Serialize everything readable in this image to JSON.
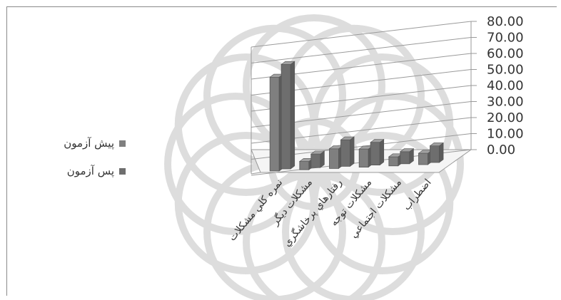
{
  "chart_data": {
    "type": "bar",
    "three_d": true,
    "categories": [
      "نمره كلي مشكلات",
      "مشكلات ديگر",
      "رفتارهاي پرخاشگري",
      "مشكلات توجه",
      "مشكلات اجتماعي",
      "اضطراب"
    ],
    "series": [
      {
        "name": "پيش آزمون",
        "values": [
          62.0,
          5.5,
          13.0,
          12.0,
          6.0,
          7.5
        ],
        "color": "#7f7f7f"
      },
      {
        "name": "پس آزمون",
        "values": [
          69.0,
          9.0,
          17.5,
          15.0,
          8.0,
          11.0
        ],
        "color": "#6e6e6e"
      }
    ],
    "ylim": [
      0,
      80
    ],
    "yticks": [
      "80.00",
      "70.00",
      "60.00",
      "50.00",
      "40.00",
      "30.00",
      "20.00",
      "10.00",
      "0.00"
    ],
    "grid": true,
    "legend_position": "left"
  },
  "legend": {
    "items": [
      {
        "label": "پيش آزمون",
        "color": "#7f7f7f"
      },
      {
        "label": "پس آزمون",
        "color": "#6e6e6e"
      }
    ]
  }
}
